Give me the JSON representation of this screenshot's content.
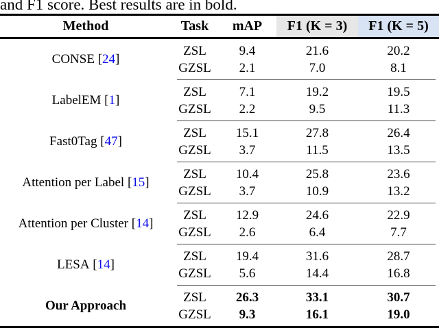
{
  "caption": "and F1 score. Best results are in bold.",
  "colors": {
    "citation_blue": "#0a0aee",
    "f1k3_header_bg": "#e7e7e7",
    "f1k5_header_bg": "#d8e3f3",
    "rule_black": "#000000"
  },
  "table": {
    "headers": {
      "method": "Method",
      "task": "Task",
      "map": "mAP",
      "f1k3": "F1 (K = 3)",
      "f1k5": "F1 (K = 5)"
    },
    "groups": [
      {
        "method": "CONSE",
        "cite_pre": " [",
        "cite_num": "24",
        "cite_post": "]",
        "rows": [
          {
            "task": "ZSL",
            "map": "9.4",
            "f1k3": "21.6",
            "f1k5": "20.2"
          },
          {
            "task": "GZSL",
            "map": "2.1",
            "f1k3": "7.0",
            "f1k5": "8.1"
          }
        ]
      },
      {
        "method": "LabelEM",
        "cite_pre": " [",
        "cite_num": "1",
        "cite_post": "]",
        "rows": [
          {
            "task": "ZSL",
            "map": "7.1",
            "f1k3": "19.2",
            "f1k5": "19.5"
          },
          {
            "task": "GZSL",
            "map": "2.2",
            "f1k3": "9.5",
            "f1k5": "11.3"
          }
        ]
      },
      {
        "method": "Fast0Tag",
        "cite_pre": " [",
        "cite_num": "47",
        "cite_post": "]",
        "rows": [
          {
            "task": "ZSL",
            "map": "15.1",
            "f1k3": "27.8",
            "f1k5": "26.4"
          },
          {
            "task": "GZSL",
            "map": "3.7",
            "f1k3": "11.5",
            "f1k5": "13.5"
          }
        ]
      },
      {
        "method": "Attention per Label",
        "cite_pre": " [",
        "cite_num": "15",
        "cite_post": "]",
        "rows": [
          {
            "task": "ZSL",
            "map": "10.4",
            "f1k3": "25.8",
            "f1k5": "23.6"
          },
          {
            "task": "GZSL",
            "map": "3.7",
            "f1k3": "10.9",
            "f1k5": "13.2"
          }
        ]
      },
      {
        "method": "Attention per Cluster",
        "cite_pre": " [",
        "cite_num": "14",
        "cite_post": "]",
        "rows": [
          {
            "task": "ZSL",
            "map": "12.9",
            "f1k3": "24.6",
            "f1k5": "22.9"
          },
          {
            "task": "GZSL",
            "map": "2.6",
            "f1k3": "6.4",
            "f1k5": "7.7"
          }
        ]
      },
      {
        "method": "LESA",
        "cite_pre": " [",
        "cite_num": "14",
        "cite_post": "]",
        "rows": [
          {
            "task": "ZSL",
            "map": "19.4",
            "f1k3": "31.6",
            "f1k5": "28.7"
          },
          {
            "task": "GZSL",
            "map": "5.6",
            "f1k3": "14.4",
            "f1k5": "16.8"
          }
        ]
      },
      {
        "method": "Our Approach",
        "rows": [
          {
            "task": "ZSL",
            "map": "26.3",
            "f1k3": "33.1",
            "f1k5": "30.7"
          },
          {
            "task": "GZSL",
            "map": "9.3",
            "f1k3": "16.1",
            "f1k5": "19.0"
          }
        ]
      }
    ]
  }
}
